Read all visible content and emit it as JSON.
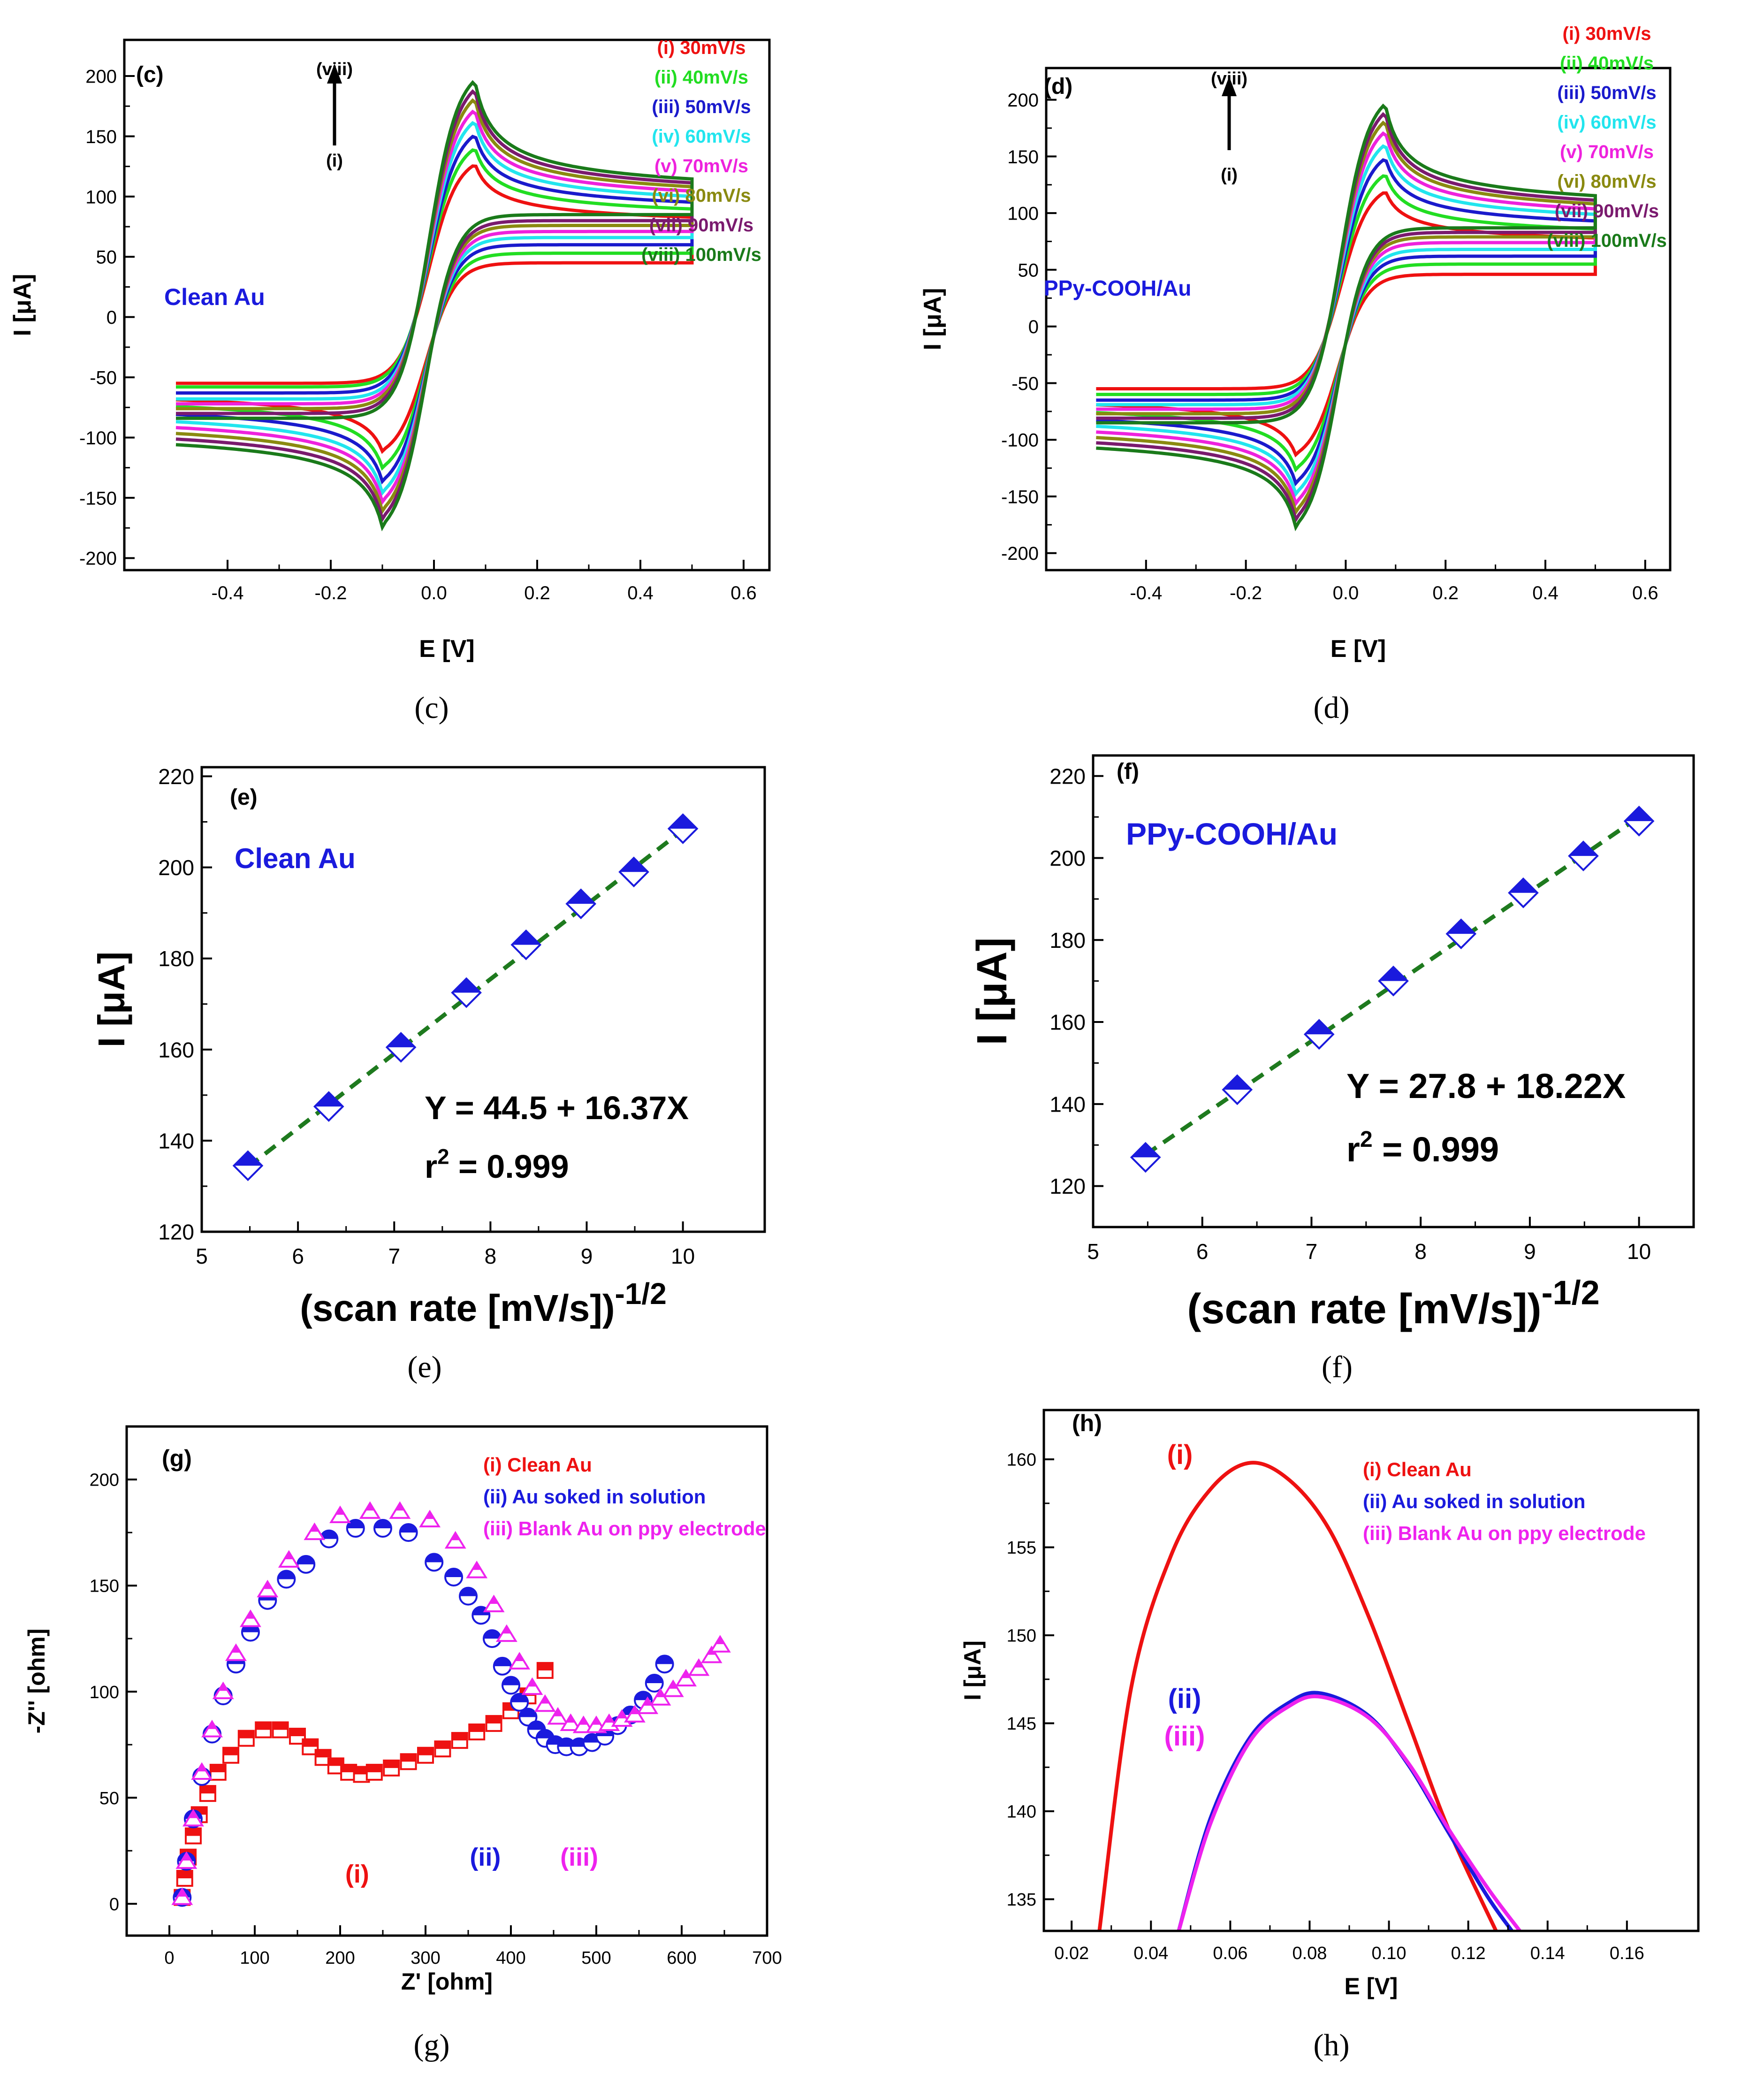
{
  "chart_data": [
    {
      "id": "c",
      "type": "line",
      "panel_tag": "(c)",
      "caption": "(c)",
      "xlabel": "E [V]",
      "ylabel": "I [μA]",
      "xlim": [
        -0.6,
        0.65
      ],
      "ylim": [
        -210,
        230
      ],
      "xticks": [
        -0.4,
        -0.2,
        0.0,
        0.2,
        0.4,
        0.6
      ],
      "xtick_labels": [
        "-0.4",
        "-0.2",
        "0.0",
        "0.2",
        "0.4",
        "0.6"
      ],
      "yticks": [
        -200,
        -150,
        -100,
        -50,
        0,
        50,
        100,
        150,
        200
      ],
      "inset_label": "Clean Au",
      "arrow_top": "(viii)",
      "arrow_bottom": "(i)",
      "legend_position": "top-right",
      "curve_model": {
        "E_start": -0.5,
        "E_end": 0.5,
        "E_peak_anodic": 0.075,
        "E_peak_cathodic": -0.095
      },
      "series": [
        {
          "name": "(i) 30mV/s",
          "color": "#ee1111",
          "ipa": 134,
          "ipc": -118,
          "i_end_anodic": 45,
          "i_end_cathodic": 70,
          "i_start": -55
        },
        {
          "name": "(ii) 40mV/s",
          "color": "#22dd22",
          "ipa": 148,
          "ipc": -133,
          "i_end_anodic": 53,
          "i_end_cathodic": 75,
          "i_start": -58
        },
        {
          "name": "(iii) 50mV/s",
          "color": "#1a1acc",
          "ipa": 160,
          "ipc": -145,
          "i_end_anodic": 60,
          "i_end_cathodic": 79,
          "i_start": -63
        },
        {
          "name": "(iv) 60mV/s",
          "color": "#22e5ee",
          "ipa": 172,
          "ipc": -155,
          "i_end_anodic": 66,
          "i_end_cathodic": 82,
          "i_start": -68
        },
        {
          "name": "(v) 70mV/s",
          "color": "#ee22dd",
          "ipa": 182,
          "ipc": -163,
          "i_end_anodic": 71,
          "i_end_cathodic": 85,
          "i_start": -72
        },
        {
          "name": "(vi) 80mV/s",
          "color": "#8a8a10",
          "ipa": 192,
          "ipc": -171,
          "i_end_anodic": 76,
          "i_end_cathodic": 87,
          "i_start": -76
        },
        {
          "name": "(vii) 90mV/s",
          "color": "#7a1a6e",
          "ipa": 200,
          "ipc": -178,
          "i_end_anodic": 80,
          "i_end_cathodic": 89,
          "i_start": -80
        },
        {
          "name": "(viii) 100mV/s",
          "color": "#1a7a1a",
          "ipa": 208,
          "ipc": -185,
          "i_end_anodic": 85,
          "i_end_cathodic": 91,
          "i_start": -84
        }
      ]
    },
    {
      "id": "d",
      "type": "line",
      "panel_tag": "(d)",
      "caption": "(d)",
      "xlabel": "E [V]",
      "ylabel": "I [μA]",
      "xlim": [
        -0.6,
        0.65
      ],
      "ylim": [
        -215,
        228
      ],
      "xticks": [
        -0.4,
        -0.2,
        0.0,
        0.2,
        0.4,
        0.6
      ],
      "xtick_labels": [
        "-0.4",
        "-0.2",
        "0.0",
        "0.2",
        "0.4",
        "0.6"
      ],
      "yticks": [
        -200,
        -150,
        -100,
        -50,
        0,
        50,
        100,
        150,
        200
      ],
      "inset_label": "PPy-COOH/Au",
      "arrow_top": "(viii)",
      "arrow_bottom": "(i)",
      "legend_position": "top-right",
      "curve_model": {
        "E_start": -0.5,
        "E_end": 0.5,
        "E_peak_anodic": 0.075,
        "E_peak_cathodic": -0.095
      },
      "series": [
        {
          "name": "(i) 30mV/s",
          "color": "#ee1111",
          "ipa": 126,
          "ipc": -120,
          "i_end_anodic": 46,
          "i_end_cathodic": 66,
          "i_start": -55
        },
        {
          "name": "(ii) 40mV/s",
          "color": "#22dd22",
          "ipa": 142,
          "ipc": -134,
          "i_end_anodic": 55,
          "i_end_cathodic": 72,
          "i_start": -60
        },
        {
          "name": "(iii) 50mV/s",
          "color": "#1a1acc",
          "ipa": 157,
          "ipc": -147,
          "i_end_anodic": 62,
          "i_end_cathodic": 77,
          "i_start": -65
        },
        {
          "name": "(iv) 60mV/s",
          "color": "#22e5ee",
          "ipa": 170,
          "ipc": -157,
          "i_end_anodic": 68,
          "i_end_cathodic": 81,
          "i_start": -69
        },
        {
          "name": "(v) 70mV/s",
          "color": "#ee22dd",
          "ipa": 182,
          "ipc": -166,
          "i_end_anodic": 74,
          "i_end_cathodic": 84,
          "i_start": -73
        },
        {
          "name": "(vi) 80mV/s",
          "color": "#8a8a10",
          "ipa": 192,
          "ipc": -174,
          "i_end_anodic": 79,
          "i_end_cathodic": 87,
          "i_start": -77
        },
        {
          "name": "(vii) 90mV/s",
          "color": "#7a1a6e",
          "ipa": 200,
          "ipc": -181,
          "i_end_anodic": 83,
          "i_end_cathodic": 89,
          "i_start": -81
        },
        {
          "name": "(viii) 100mV/s",
          "color": "#1a7a1a",
          "ipa": 208,
          "ipc": -188,
          "i_end_anodic": 87,
          "i_end_cathodic": 92,
          "i_start": -85
        }
      ]
    },
    {
      "id": "e",
      "type": "scatter",
      "panel_tag": "(e)",
      "caption": "(e)",
      "xlabel": "(scan rate [mV/s])",
      "xlabel_sup": "-1/2",
      "ylabel": "I [μA]",
      "xlim": [
        5,
        10.85
      ],
      "ylim": [
        120,
        222
      ],
      "xticks": [
        5,
        6,
        7,
        8,
        9,
        10
      ],
      "yticks": [
        120,
        140,
        160,
        180,
        200,
        220
      ],
      "inset_label": "Clean Au",
      "equation": "Y = 44.5 + 16.37X",
      "r2_label": "r",
      "r2_sup": "2",
      "r2_value": " = 0.999",
      "fit": {
        "intercept": 44.5,
        "slope": 16.37,
        "x_range": [
          5.48,
          10.0
        ],
        "color": "#1e7a1e"
      },
      "marker_color": "#1a1add",
      "x": [
        5.48,
        6.32,
        7.07,
        7.75,
        8.37,
        8.94,
        9.49,
        10.0
      ],
      "y": [
        134.5,
        147.5,
        160.5,
        172.5,
        183,
        192,
        199,
        208.5
      ]
    },
    {
      "id": "f",
      "type": "scatter",
      "panel_tag": "(f)",
      "caption": "(f)",
      "xlabel": "(scan rate [mV/s])",
      "xlabel_sup": "-1/2",
      "ylabel": "I [μA]",
      "xlim": [
        5,
        10.5
      ],
      "ylim": [
        110,
        225
      ],
      "xticks": [
        5,
        6,
        7,
        8,
        9,
        10
      ],
      "yticks": [
        120,
        140,
        160,
        180,
        200,
        220
      ],
      "inset_label": "PPy-COOH/Au",
      "equation": "Y = 27.8 + 18.22X",
      "r2_label": "r",
      "r2_sup": "2",
      "r2_value": " = 0.999",
      "fit": {
        "intercept": 27.8,
        "slope": 18.22,
        "x_range": [
          5.48,
          10.0
        ],
        "color": "#1e7a1e"
      },
      "marker_color": "#1a1add",
      "x": [
        5.48,
        6.32,
        7.07,
        7.75,
        8.37,
        8.94,
        9.49,
        10.0
      ],
      "y": [
        127,
        143.5,
        157,
        170,
        181.5,
        191.5,
        200.5,
        209
      ]
    },
    {
      "id": "g",
      "type": "scatter",
      "panel_tag": "(g)",
      "caption": "(g)",
      "xlabel": "Z' [ohm]",
      "ylabel": "-Z'' [ohm]",
      "xlim": [
        -50,
        700
      ],
      "ylim": [
        -15,
        225
      ],
      "xticks": [
        0,
        100,
        200,
        300,
        400,
        500,
        600,
        700
      ],
      "yticks": [
        0,
        50,
        100,
        150,
        200
      ],
      "legend_position": "top-right",
      "series": [
        {
          "name": "(i) Clean Au",
          "marker": "square",
          "color": "#ee1111",
          "annotation": "(i)",
          "annotation_at": [
            220,
            10
          ],
          "x": [
            15,
            18,
            22,
            28,
            35,
            45,
            57,
            72,
            90,
            110,
            130,
            150,
            165,
            180,
            195,
            210,
            225,
            240,
            260,
            280,
            300,
            320,
            340,
            360,
            380,
            400,
            420,
            440
          ],
          "y": [
            3,
            12,
            22,
            32,
            42,
            52,
            62,
            70,
            78,
            82,
            82,
            79,
            74,
            69,
            65,
            62,
            61,
            62,
            64,
            67,
            70,
            73,
            77,
            81,
            85,
            91,
            98,
            110
          ]
        },
        {
          "name": "(ii) Au soked in solution",
          "marker": "half-circle",
          "color": "#1a1add",
          "annotation": "(ii)",
          "annotation_at": [
            370,
            18
          ],
          "x": [
            15,
            20,
            28,
            38,
            50,
            63,
            78,
            95,
            115,
            137,
            160,
            187,
            218,
            250,
            280,
            310,
            333,
            350,
            365,
            378,
            390,
            400,
            410,
            420,
            430,
            440,
            452,
            465,
            480,
            495,
            510,
            525,
            540,
            555,
            568,
            580
          ],
          "y": [
            3,
            20,
            40,
            60,
            80,
            98,
            113,
            128,
            143,
            153,
            160,
            172,
            177,
            177,
            175,
            161,
            154,
            145,
            136,
            125,
            112,
            103,
            95,
            88,
            82,
            78,
            75,
            74,
            74,
            76,
            79,
            84,
            89,
            96,
            104,
            113
          ]
        },
        {
          "name": "(iii) Blank Au on ppy electrode",
          "marker": "triangle",
          "color": "#ee22ee",
          "annotation": "(iii)",
          "annotation_at": [
            480,
            18
          ],
          "x": [
            15,
            20,
            28,
            38,
            50,
            63,
            78,
            95,
            115,
            140,
            170,
            200,
            235,
            270,
            305,
            335,
            360,
            380,
            395,
            410,
            425,
            440,
            455,
            470,
            485,
            500,
            515,
            530,
            545,
            560,
            575,
            590,
            605,
            620,
            635,
            645
          ],
          "y": [
            3,
            20,
            40,
            62,
            82,
            100,
            118,
            134,
            148,
            162,
            175,
            183,
            185,
            185,
            181,
            171,
            157,
            141,
            127,
            114,
            102,
            94,
            88,
            85,
            84,
            84,
            85,
            87,
            89,
            93,
            97,
            101,
            106,
            111,
            117,
            122
          ]
        }
      ]
    },
    {
      "id": "h",
      "type": "line",
      "panel_tag": "(h)",
      "caption": "(h)",
      "xlabel": "E [V]",
      "ylabel": "I [μA]",
      "xlim": [
        0.013,
        0.178
      ],
      "ylim": [
        133.2,
        162.8
      ],
      "xticks": [
        0.02,
        0.04,
        0.06,
        0.08,
        0.1,
        0.12,
        0.14,
        0.16
      ],
      "xtick_labels": [
        "0.02",
        "0.04",
        "0.06",
        "0.08",
        "0.10",
        "0.12",
        "0.14",
        "0.16"
      ],
      "yticks": [
        135,
        140,
        145,
        150,
        155,
        160
      ],
      "legend_position": "top-right",
      "series": [
        {
          "name": "(i) Clean Au",
          "color": "#ee1111",
          "annotation": "(i)",
          "x": [
            0.027,
            0.035,
            0.045,
            0.055,
            0.065,
            0.075,
            0.085,
            0.095,
            0.105,
            0.115,
            0.127
          ],
          "y": [
            133.2,
            147.0,
            154.5,
            158.3,
            159.8,
            158.8,
            156.0,
            151.0,
            145.0,
            139.0,
            133.2
          ]
        },
        {
          "name": "(ii) Au soked in solution",
          "color": "#1a1add",
          "annotation": "(ii)",
          "x": [
            0.047,
            0.055,
            0.065,
            0.075,
            0.083,
            0.095,
            0.105,
            0.115,
            0.125,
            0.131
          ],
          "y": [
            133.2,
            139.6,
            144.2,
            146.2,
            146.7,
            145.4,
            142.6,
            138.8,
            135.1,
            133.2
          ]
        },
        {
          "name": "(iii) Blank Au on ppy electrode",
          "color": "#ee22ee",
          "annotation": "(iii)",
          "x": [
            0.047,
            0.055,
            0.065,
            0.075,
            0.083,
            0.095,
            0.105,
            0.115,
            0.125,
            0.133
          ],
          "y": [
            133.2,
            139.3,
            144.0,
            146.0,
            146.5,
            145.3,
            142.7,
            139.0,
            135.6,
            133.2
          ]
        }
      ]
    }
  ]
}
